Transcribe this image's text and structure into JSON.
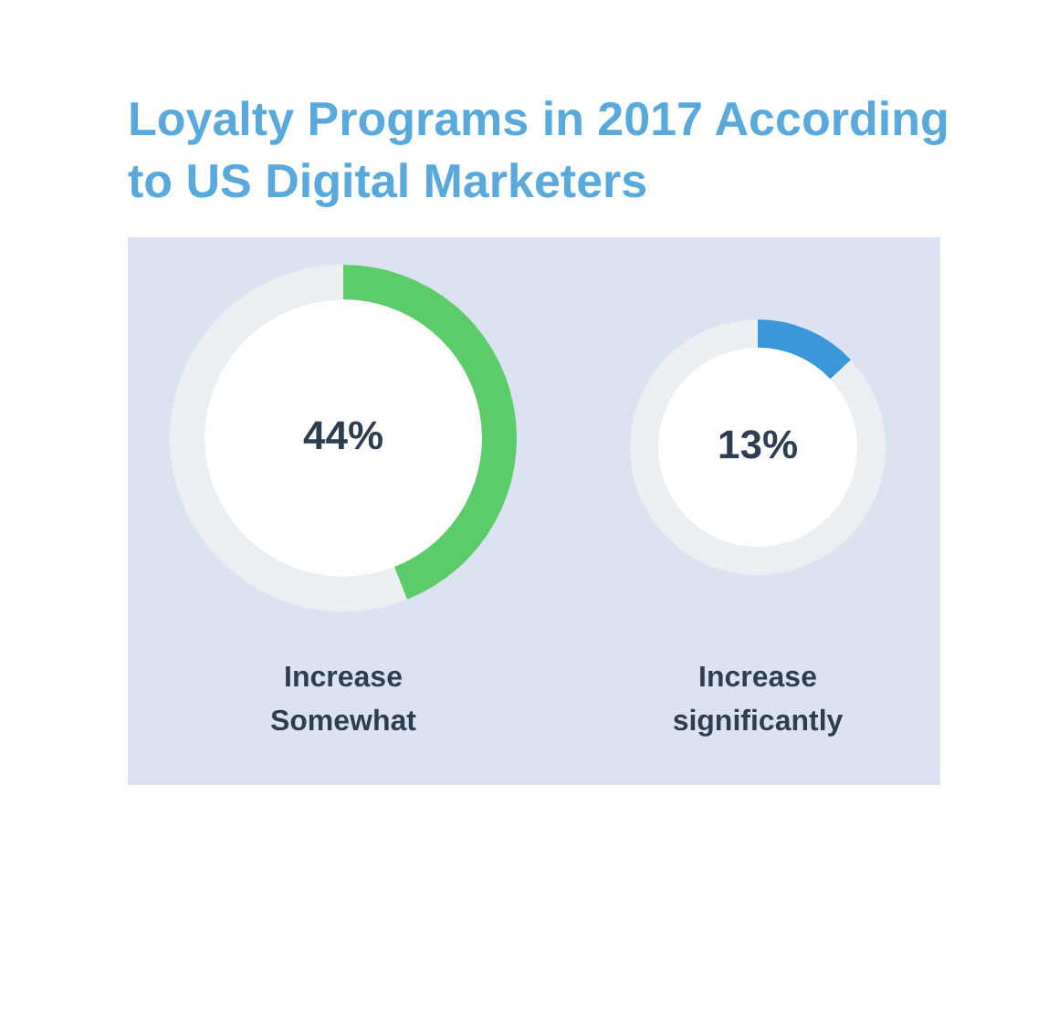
{
  "chart_data": [
    {
      "type": "donut",
      "title": "Loyalty Programs in 2017 According to US Digital Marketers",
      "xlabel": "Increase Somewhat",
      "categories": [
        null,
        null
      ],
      "values": [
        44,
        56
      ],
      "colors": [
        "#5ccb6a",
        "#eceff1"
      ],
      "value_labels": [
        "44%",
        null
      ]
    },
    {
      "type": "donut",
      "xlabel": "Increase significantly",
      "categories": [
        null,
        null
      ],
      "values": [
        13,
        87
      ],
      "colors": [
        "#3a97d8",
        "#eceff1"
      ],
      "value_labels": [
        "13%",
        null
      ]
    }
  ]
}
